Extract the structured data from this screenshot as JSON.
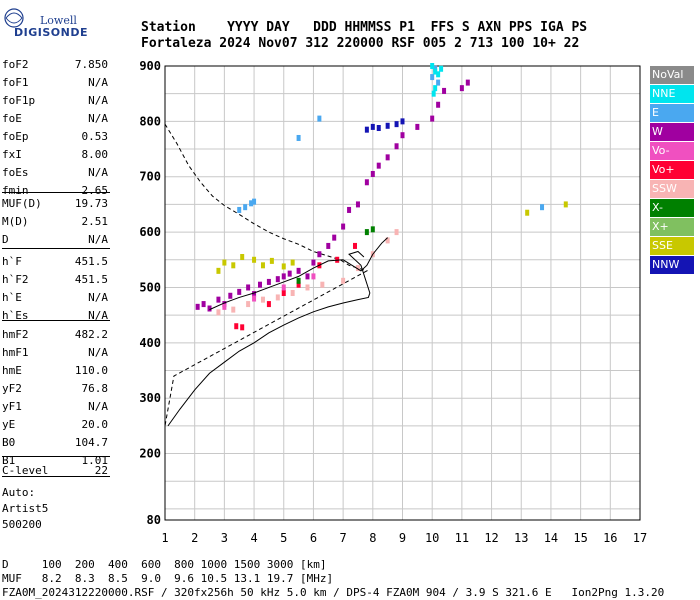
{
  "logo": {
    "line1": "Lowell",
    "line2": "DIGISONDE"
  },
  "header": {
    "labels": "Station    YYYY DAY   DDD HHMMSS P1  FFS S AXN PPS IGA PS",
    "values": "Fortaleza 2024 Nov07 312 220000 RSF 005 2 713 100 10+ 22"
  },
  "params": [
    {
      "k": "foF2",
      "v": "7.850"
    },
    {
      "k": "foF1",
      "v": "N/A"
    },
    {
      "k": "foF1p",
      "v": "N/A"
    },
    {
      "k": "foE",
      "v": "N/A"
    },
    {
      "k": "foEp",
      "v": "0.53"
    },
    {
      "k": "fxI",
      "v": "8.00"
    },
    {
      "k": "foEs",
      "v": "N/A"
    },
    {
      "k": "fmin",
      "v": "2.65"
    },
    {
      "k": "MUF(D)",
      "v": "19.73"
    },
    {
      "k": "M(D)",
      "v": "2.51"
    },
    {
      "k": "D",
      "v": "N/A"
    },
    {
      "k": "h`F",
      "v": "451.5"
    },
    {
      "k": "h`F2",
      "v": "451.5"
    },
    {
      "k": "h`E",
      "v": "N/A"
    },
    {
      "k": "h`Es",
      "v": "N/A"
    },
    {
      "k": "hmF2",
      "v": "482.2"
    },
    {
      "k": "hmF1",
      "v": "N/A"
    },
    {
      "k": "hmE",
      "v": "110.0"
    },
    {
      "k": "yF2",
      "v": "76.8"
    },
    {
      "k": "yF1",
      "v": "N/A"
    },
    {
      "k": "yE",
      "v": "20.0"
    },
    {
      "k": "B0",
      "v": "104.7"
    },
    {
      "k": "B1",
      "v": "1.01"
    },
    {
      "k": "C-level",
      "v": "22"
    }
  ],
  "auto": {
    "l1": "Auto:",
    "l2": "Artist5",
    "l3": "500200"
  },
  "legend": [
    {
      "label": "NoVal",
      "color": "#8a8a8a"
    },
    {
      "label": "NNE",
      "color": "#00e5ee"
    },
    {
      "label": "E",
      "color": "#4aa8f0"
    },
    {
      "label": "W",
      "color": "#a000a0"
    },
    {
      "label": "Vo-",
      "color": "#f050c0"
    },
    {
      "label": "Vo+",
      "color": "#ff0033"
    },
    {
      "label": "SSW",
      "color": "#f8b4b4"
    },
    {
      "label": "X-",
      "color": "#008000"
    },
    {
      "label": "X+",
      "color": "#80c060"
    },
    {
      "label": "SSE",
      "color": "#c8c800"
    },
    {
      "label": "NNW",
      "color": "#1414b4"
    }
  ],
  "bottom": {
    "row1": "D     100  200  400  600  800 1000 1500 3000 [km]",
    "row2": "MUF   8.2  8.3  8.5  9.0  9.6 10.5 13.1 19.7 [MHz]",
    "row3": "FZA0M_2024312220000.RSF / 320fx256h 50 kHz 5.0 km / DPS-4 FZA0M 904 / 3.9 S 321.6 E   Ion2Png 1.3.20"
  },
  "chart_data": {
    "type": "scatter",
    "xlim": [
      1,
      17
    ],
    "ylim": [
      80,
      900
    ],
    "xticks": [
      1,
      2,
      3,
      4,
      5,
      6,
      7,
      8,
      9,
      10,
      11,
      12,
      13,
      14,
      15,
      16,
      17
    ],
    "yticks": [
      80,
      200,
      300,
      400,
      500,
      600,
      700,
      800,
      900
    ],
    "grid": true,
    "series": [
      {
        "name": "W",
        "color": "#a000a0",
        "points": [
          [
            2.1,
            465
          ],
          [
            2.3,
            470
          ],
          [
            2.5,
            462
          ],
          [
            2.8,
            478
          ],
          [
            3.0,
            470
          ],
          [
            3.2,
            485
          ],
          [
            3.5,
            492
          ],
          [
            3.8,
            500
          ],
          [
            4.0,
            488
          ],
          [
            4.2,
            505
          ],
          [
            4.5,
            510
          ],
          [
            4.8,
            515
          ],
          [
            5.0,
            520
          ],
          [
            5.2,
            525
          ],
          [
            5.5,
            530
          ],
          [
            5.8,
            520
          ],
          [
            6.0,
            545
          ],
          [
            6.2,
            560
          ],
          [
            6.5,
            575
          ],
          [
            6.7,
            590
          ],
          [
            7.0,
            610
          ],
          [
            7.2,
            640
          ],
          [
            7.5,
            650
          ],
          [
            7.8,
            690
          ],
          [
            8.0,
            705
          ],
          [
            8.2,
            720
          ],
          [
            8.5,
            735
          ],
          [
            8.8,
            755
          ],
          [
            9.0,
            775
          ],
          [
            9.5,
            790
          ],
          [
            10.0,
            805
          ],
          [
            10.2,
            830
          ],
          [
            10.4,
            855
          ],
          [
            11.0,
            860
          ],
          [
            11.2,
            870
          ]
        ]
      },
      {
        "name": "SSW",
        "color": "#f8b4b4",
        "points": [
          [
            2.8,
            455
          ],
          [
            3.3,
            460
          ],
          [
            3.8,
            470
          ],
          [
            4.3,
            478
          ],
          [
            4.8,
            482
          ],
          [
            5.3,
            490
          ],
          [
            5.8,
            500
          ],
          [
            6.3,
            505
          ],
          [
            7.0,
            512
          ],
          [
            7.5,
            535
          ],
          [
            8.0,
            560
          ],
          [
            8.5,
            585
          ],
          [
            8.8,
            600
          ]
        ]
      },
      {
        "name": "SSE",
        "color": "#c8c800",
        "points": [
          [
            2.8,
            530
          ],
          [
            3.0,
            545
          ],
          [
            3.3,
            540
          ],
          [
            3.6,
            555
          ],
          [
            4.0,
            550
          ],
          [
            4.3,
            540
          ],
          [
            4.6,
            548
          ],
          [
            5.0,
            538
          ],
          [
            5.3,
            545
          ],
          [
            14.5,
            650
          ],
          [
            13.2,
            635
          ]
        ]
      },
      {
        "name": "E",
        "color": "#4aa8f0",
        "points": [
          [
            3.5,
            640
          ],
          [
            3.7,
            645
          ],
          [
            3.9,
            652
          ],
          [
            4.0,
            655
          ],
          [
            5.5,
            770
          ],
          [
            6.2,
            805
          ],
          [
            10.0,
            880
          ],
          [
            10.1,
            895
          ],
          [
            10.2,
            870
          ],
          [
            13.7,
            645
          ]
        ]
      },
      {
        "name": "NNE",
        "color": "#00e5ee",
        "points": [
          [
            10.0,
            900
          ],
          [
            10.1,
            890
          ],
          [
            10.2,
            885
          ],
          [
            10.3,
            895
          ],
          [
            10.1,
            860
          ],
          [
            10.05,
            850
          ]
        ]
      },
      {
        "name": "NNW",
        "color": "#1414b4",
        "points": [
          [
            7.8,
            785
          ],
          [
            8.0,
            790
          ],
          [
            8.2,
            788
          ],
          [
            8.5,
            792
          ],
          [
            8.8,
            795
          ],
          [
            9.0,
            800
          ]
        ]
      },
      {
        "name": "Vo+",
        "color": "#ff0033",
        "points": [
          [
            3.4,
            430
          ],
          [
            3.6,
            428
          ],
          [
            4.5,
            470
          ],
          [
            5.0,
            490
          ],
          [
            5.5,
            505
          ],
          [
            6.2,
            540
          ],
          [
            6.8,
            550
          ],
          [
            7.4,
            575
          ]
        ]
      },
      {
        "name": "X-",
        "color": "#008000",
        "points": [
          [
            5.5,
            512
          ],
          [
            7.8,
            600
          ],
          [
            8.0,
            605
          ]
        ]
      },
      {
        "name": "Vo-",
        "color": "#f050c0",
        "points": [
          [
            3.0,
            465
          ],
          [
            4.0,
            480
          ],
          [
            5.0,
            500
          ],
          [
            6.0,
            520
          ]
        ]
      }
    ],
    "profile": [
      [
        1.1,
        250
      ],
      [
        1.5,
        280
      ],
      [
        2.0,
        315
      ],
      [
        2.5,
        345
      ],
      [
        3.0,
        365
      ],
      [
        3.5,
        385
      ],
      [
        4.0,
        400
      ],
      [
        4.5,
        418
      ],
      [
        5.0,
        432
      ],
      [
        5.5,
        445
      ],
      [
        6.0,
        456
      ],
      [
        6.5,
        465
      ],
      [
        7.0,
        472
      ],
      [
        7.5,
        478
      ],
      [
        7.85,
        482
      ],
      [
        7.9,
        490
      ],
      [
        7.6,
        540
      ],
      [
        7.2,
        560
      ],
      [
        7.5,
        565
      ],
      [
        7.7,
        555
      ]
    ],
    "trace": [
      [
        2.5,
        460
      ],
      [
        3.0,
        472
      ],
      [
        3.5,
        482
      ],
      [
        4.0,
        490
      ],
      [
        4.5,
        500
      ],
      [
        5.0,
        510
      ],
      [
        5.5,
        520
      ],
      [
        6.0,
        535
      ],
      [
        6.5,
        548
      ],
      [
        7.0,
        550
      ],
      [
        7.3,
        540
      ],
      [
        7.6,
        530
      ],
      [
        7.8,
        540
      ],
      [
        8.0,
        560
      ],
      [
        8.3,
        580
      ],
      [
        8.5,
        590
      ]
    ],
    "dashed": [
      [
        1.0,
        795
      ],
      [
        1.4,
        760
      ],
      [
        1.8,
        720
      ],
      [
        2.2,
        690
      ],
      [
        2.6,
        665
      ],
      [
        3.0,
        648
      ],
      [
        3.5,
        632
      ],
      [
        4.0,
        615
      ],
      [
        4.5,
        600
      ],
      [
        5.0,
        588
      ],
      [
        5.5,
        578
      ],
      [
        6.0,
        565
      ],
      [
        6.3,
        560
      ],
      [
        6.6,
        555
      ],
      [
        6.9,
        550
      ],
      [
        7.2,
        540
      ],
      [
        7.8,
        530
      ],
      [
        1.3,
        340
      ],
      [
        1.0,
        250
      ]
    ]
  }
}
